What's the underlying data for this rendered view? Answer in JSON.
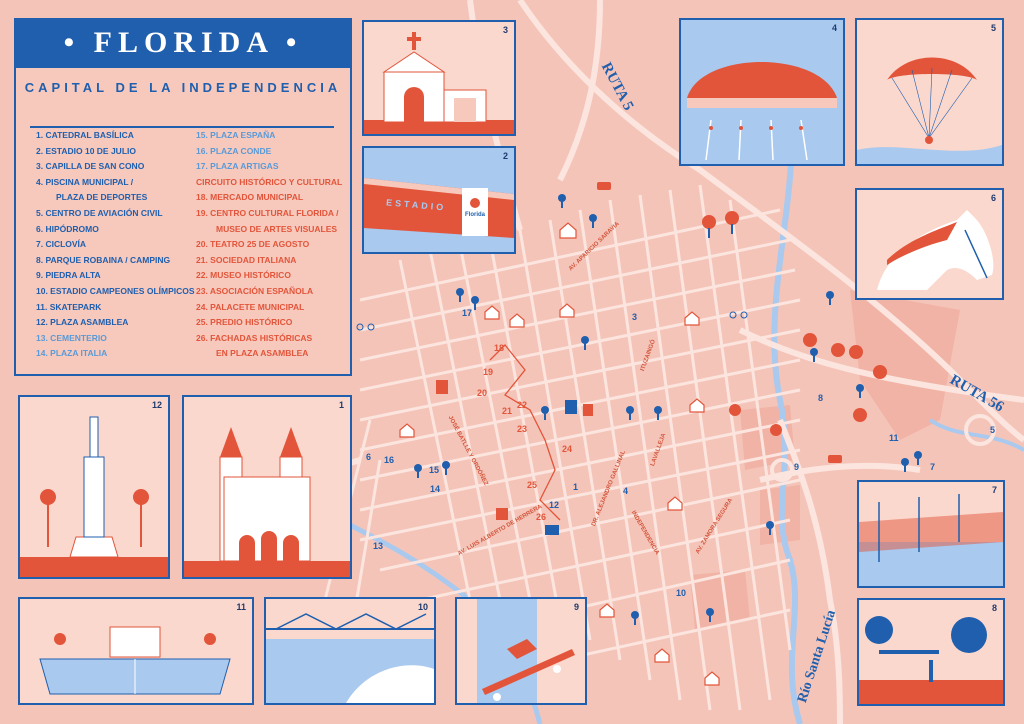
{
  "legend": {
    "title": "FLORIDA",
    "subtitle": "CAPITAL DE LA INDEPENDENCIA",
    "items_col1": [
      {
        "text": "1. CATEDRAL BASÍLICA",
        "tone": "blue"
      },
      {
        "text": "2. ESTADIO 10 DE JULIO",
        "tone": "blue"
      },
      {
        "text": "3. CAPILLA DE SAN CONO",
        "tone": "blue"
      },
      {
        "text": "4. PISCINA MUNICIPAL /",
        "tone": "blue"
      },
      {
        "text": "PLAZA DE DEPORTES",
        "tone": "blue",
        "indent": true
      },
      {
        "text": "5. CENTRO DE AVIACIÓN CIVIL",
        "tone": "blue"
      },
      {
        "text": "6. HIPÓDROMO",
        "tone": "blue"
      },
      {
        "text": "7. CICLOVÍA",
        "tone": "blue"
      },
      {
        "text": "8. PARQUE ROBAINA / CAMPING",
        "tone": "blue"
      },
      {
        "text": "9. PIEDRA ALTA",
        "tone": "blue"
      },
      {
        "text": "10. ESTADIO CAMPEONES OLÍMPICOS",
        "tone": "blue"
      },
      {
        "text": "11. SKATEPARK",
        "tone": "blue"
      },
      {
        "text": "12. PLAZA ASAMBLEA",
        "tone": "blue"
      },
      {
        "text": "13. CEMENTERIO",
        "tone": "light"
      },
      {
        "text": "14. PLAZA ITALIA",
        "tone": "light"
      }
    ],
    "items_col2": [
      {
        "text": "15. PLAZA ESPAÑA",
        "tone": "light"
      },
      {
        "text": "16. PLAZA CONDE",
        "tone": "light"
      },
      {
        "text": "17. PLAZA ARTIGAS",
        "tone": "light"
      },
      {
        "text": "CIRCUITO HISTÓRICO Y CULTURAL",
        "tone": "orange"
      },
      {
        "text": "18. MERCADO MUNICIPAL",
        "tone": "orange"
      },
      {
        "text": "19. CENTRO CULTURAL FLORIDA /",
        "tone": "orange"
      },
      {
        "text": "MUSEO DE ARTES VISUALES",
        "tone": "orange",
        "indent": true
      },
      {
        "text": "20. TEATRO 25 DE AGOSTO",
        "tone": "orange"
      },
      {
        "text": "21. SOCIEDAD ITALIANA",
        "tone": "orange"
      },
      {
        "text": "22. MUSEO HISTÓRICO",
        "tone": "orange"
      },
      {
        "text": "23. ASOCIACIÓN ESPAÑOLA",
        "tone": "orange"
      },
      {
        "text": "24. PALACETE MUNICIPAL",
        "tone": "orange"
      },
      {
        "text": "25. PREDIO HISTÓRICO",
        "tone": "orange"
      },
      {
        "text": "26. FACHADAS HISTÓRICAS",
        "tone": "orange"
      },
      {
        "text": "EN PLAZA ASAMBLEA",
        "tone": "orange",
        "indent": true
      }
    ]
  },
  "panels": {
    "p1": "1",
    "p2": "2",
    "p3": "3",
    "p4": "4",
    "p5": "5",
    "p6": "6",
    "p7": "7",
    "p8": "8",
    "p9": "9",
    "p10": "10",
    "p11": "11",
    "p12": "12"
  },
  "stadium_sign": "ESTADIO",
  "stadium_logo": "Florida",
  "roads": {
    "ruta5": "RUTA 5",
    "ruta56": "RUTA 56",
    "rio": "Río Santa Lucía"
  },
  "streets": {
    "s1": "AV. APARICIO SARAVIA",
    "s2": "ITUZAINGÓ",
    "s3": "LAVALLEJA",
    "s4": "INDEPENDENCIA",
    "s5": "AV. ZAMORA SEGURA",
    "s6": "DR. ALEJANDRO GALLINAL",
    "s7": "JOSÉ BATLLE Y ORDÓÑEZ",
    "s8": "AV. LUIS ALBERTO DE HERRERA"
  },
  "map_numbers": [
    {
      "n": "1",
      "tone": "b"
    },
    {
      "n": "3",
      "tone": "b"
    },
    {
      "n": "4",
      "tone": "b"
    },
    {
      "n": "6",
      "tone": "b"
    },
    {
      "n": "7",
      "tone": "b"
    },
    {
      "n": "8",
      "tone": "b"
    },
    {
      "n": "9",
      "tone": "b"
    },
    {
      "n": "10",
      "tone": "b"
    },
    {
      "n": "11",
      "tone": "b"
    },
    {
      "n": "12",
      "tone": "b"
    },
    {
      "n": "13",
      "tone": "b"
    },
    {
      "n": "14",
      "tone": "b"
    },
    {
      "n": "15",
      "tone": "b"
    },
    {
      "n": "16",
      "tone": "b"
    },
    {
      "n": "17",
      "tone": "b"
    },
    {
      "n": "5",
      "tone": "b"
    },
    {
      "n": "18",
      "tone": "o"
    },
    {
      "n": "19",
      "tone": "o"
    },
    {
      "n": "20",
      "tone": "o"
    },
    {
      "n": "21",
      "tone": "o"
    },
    {
      "n": "22",
      "tone": "o"
    },
    {
      "n": "23",
      "tone": "o"
    },
    {
      "n": "24",
      "tone": "o"
    },
    {
      "n": "25",
      "tone": "o"
    },
    {
      "n": "26",
      "tone": "o"
    }
  ],
  "colors": {
    "blue": "#1f5fae",
    "orange": "#e2553a",
    "bg": "#f5c4b8",
    "street": "#fbe5de",
    "river": "#a9c9ee"
  }
}
